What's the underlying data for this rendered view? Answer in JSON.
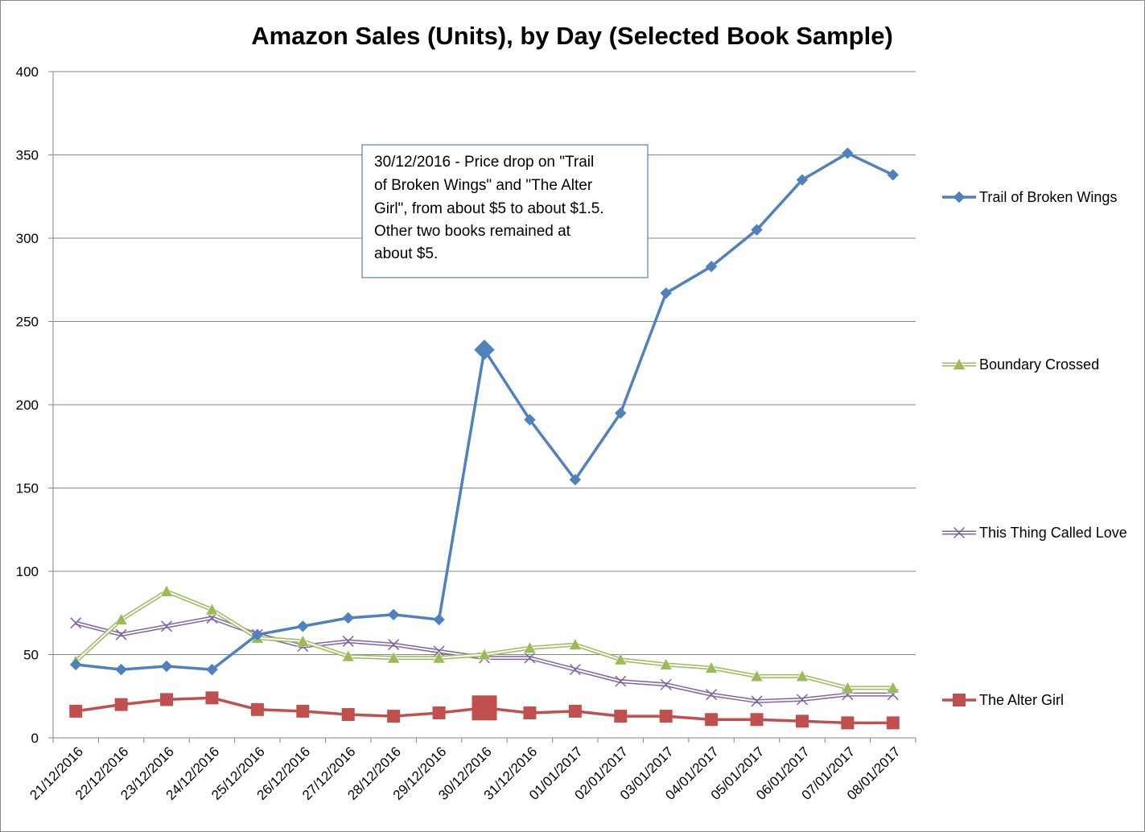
{
  "chart_data": {
    "type": "line",
    "title": "Amazon Sales (Units), by Day (Selected Book Sample)",
    "xlabel": "",
    "ylabel": "",
    "ylim": [
      0,
      400
    ],
    "yticks": [
      0,
      50,
      100,
      150,
      200,
      250,
      300,
      350,
      400
    ],
    "grid": true,
    "legend_position": "right",
    "categories": [
      "21/12/2016",
      "22/12/2016",
      "23/12/2016",
      "24/12/2016",
      "25/12/2016",
      "26/12/2016",
      "27/12/2016",
      "28/12/2016",
      "29/12/2016",
      "30/12/2016",
      "31/12/2016",
      "01/01/2017",
      "02/01/2017",
      "03/01/2017",
      "04/01/2017",
      "05/01/2017",
      "06/01/2017",
      "07/01/2017",
      "08/01/2017"
    ],
    "series": [
      {
        "name": "Trail of Broken Wings",
        "color": "#4f81bd",
        "marker": "diamond",
        "highlight_index": 9,
        "values": [
          44,
          41,
          43,
          41,
          62,
          67,
          72,
          74,
          71,
          233,
          191,
          155,
          195,
          267,
          283,
          305,
          335,
          351,
          338
        ]
      },
      {
        "name": "Boundary Crossed",
        "color": "#9bbb59",
        "marker": "triangle",
        "values": [
          46,
          71,
          88,
          77,
          60,
          58,
          49,
          48,
          48,
          50,
          54,
          56,
          47,
          44,
          42,
          37,
          37,
          30,
          30
        ]
      },
      {
        "name": "This Thing Called Love",
        "color": "#8064a2",
        "marker": "x",
        "values": [
          69,
          62,
          67,
          72,
          62,
          55,
          58,
          56,
          52,
          48,
          48,
          41,
          34,
          32,
          26,
          22,
          23,
          26,
          26
        ]
      },
      {
        "name": "The Alter Girl",
        "color": "#c0504d",
        "marker": "square",
        "highlight_index": 9,
        "values": [
          16,
          20,
          23,
          24,
          17,
          16,
          14,
          13,
          15,
          18,
          15,
          16,
          13,
          13,
          11,
          11,
          10,
          9,
          9
        ]
      }
    ],
    "annotation": {
      "lines": [
        "30/12/2016 - Price drop on \"Trail",
        "of Broken Wings\" and \"The Alter",
        "Girl\", from about $5 to about $1.5.",
        "Other two books remained at",
        "about $5."
      ]
    }
  }
}
